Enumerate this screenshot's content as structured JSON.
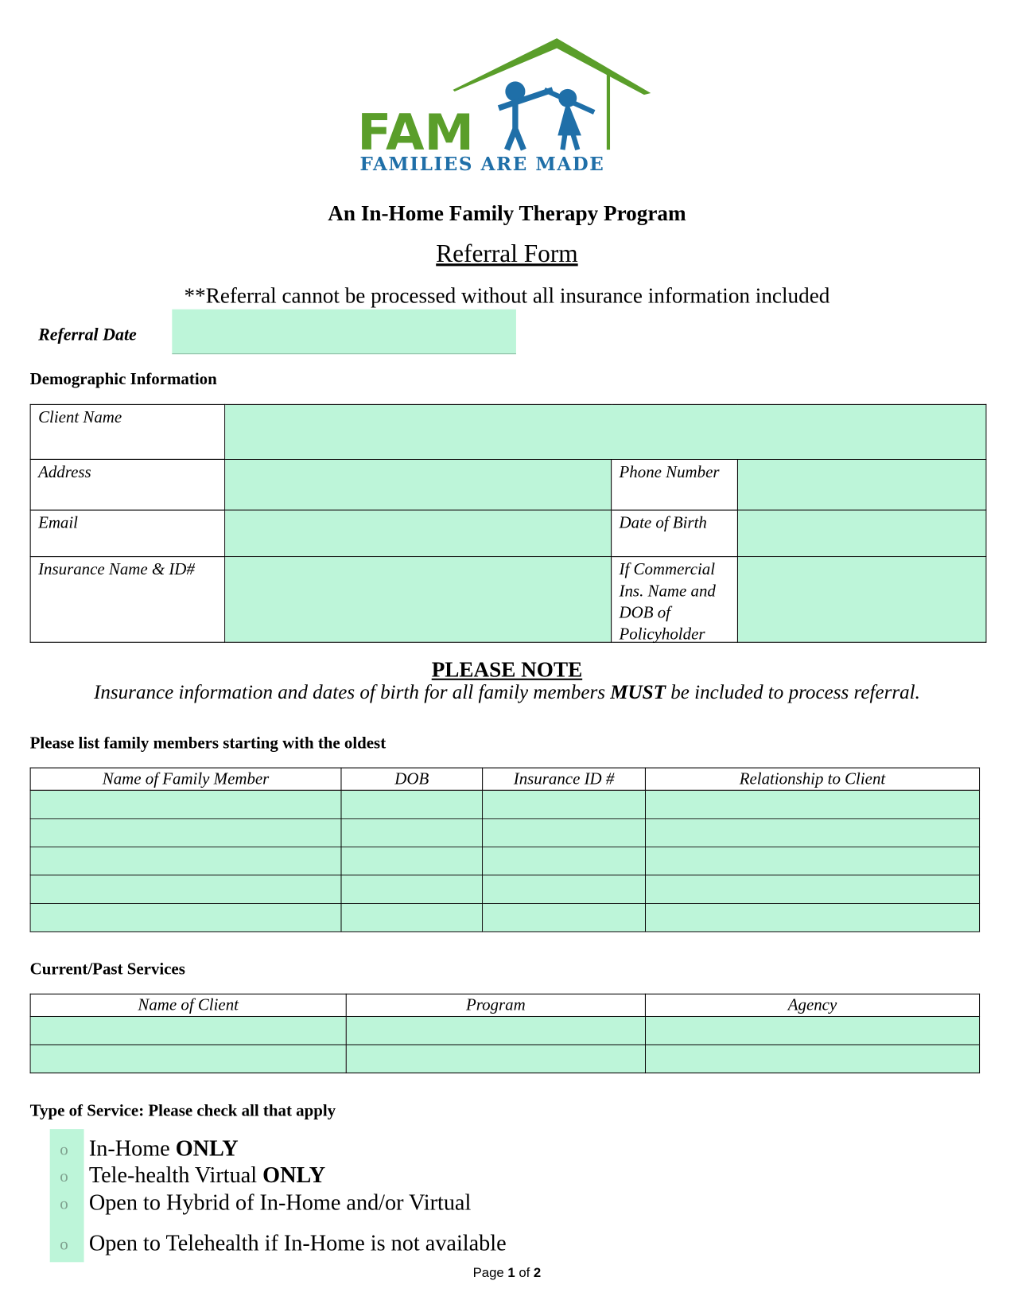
{
  "logo": {
    "text": "FAM",
    "tagline": "FAMILIES ARE MADE",
    "colors": {
      "green": "#5a9e2a",
      "blue": "#1f6fa8"
    }
  },
  "title": "An In-Home Family Therapy Program",
  "subtitle": "Referral Form",
  "warning": "**Referral cannot be processed without all insurance information included",
  "referral_date": {
    "label": "Referral Date",
    "value": ""
  },
  "demographic": {
    "heading": "Demographic Information",
    "client_name": "Client Name",
    "address": "Address",
    "phone": "Phone Number",
    "email": "Email",
    "dob": "Date of Birth",
    "insurance": "Insurance Name & ID#",
    "commercial": "If Commercial Ins. Name and DOB of Policyholder"
  },
  "note": {
    "heading": "PLEASE NOTE",
    "text_before": "Insurance information and dates of birth for all family members ",
    "text_bold": "MUST",
    "text_after": " be included to process referral."
  },
  "family": {
    "heading": "Please list family members starting with the oldest",
    "columns": [
      "Name of Family Member",
      "DOB",
      "Insurance ID #",
      "Relationship to Client"
    ],
    "rows": 5
  },
  "services": {
    "heading": "Current/Past Services",
    "columns": [
      "Name of Client",
      "Program",
      "Agency"
    ],
    "rows": 2
  },
  "service_type": {
    "heading": "Type of Service:  Please check all that apply",
    "options": [
      {
        "text": "In-Home ",
        "bold": "ONLY"
      },
      {
        "text": "Tele-health Virtual ",
        "bold": "ONLY"
      },
      {
        "text": "Open to Hybrid of In-Home and/or Virtual",
        "bold": ""
      },
      {
        "text": "Open to Telehealth if In-Home is not available",
        "bold": ""
      }
    ]
  },
  "footer": {
    "page_word": "Page",
    "current": "1",
    "of_word": "of",
    "total": "2"
  },
  "colors": {
    "field_fill": "#bdf5d9"
  }
}
